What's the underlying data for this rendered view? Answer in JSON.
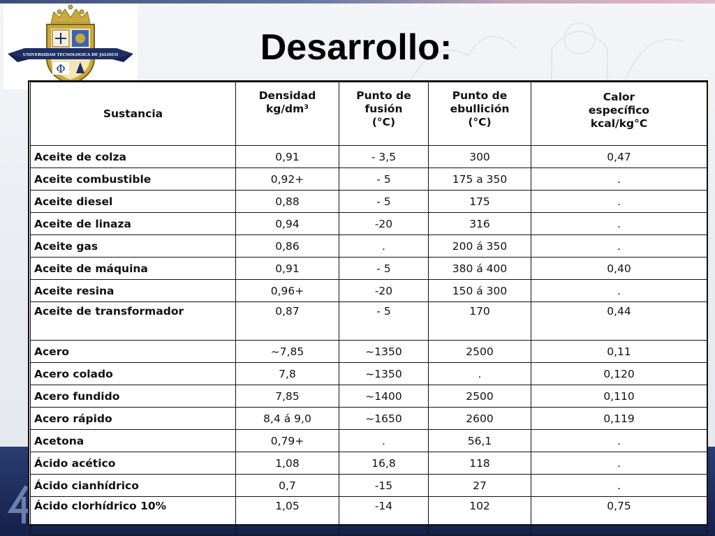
{
  "slide": {
    "title": "Desarrollo:",
    "logo": {
      "text": "UNIVERSIDAD TECNOLOGICA DE JALISCO",
      "colors": {
        "gold": "#c9a93b",
        "navy": "#1f2f63",
        "blue": "#3a63b8"
      }
    }
  },
  "table": {
    "headers": [
      "Sustancia",
      "Densidad\nkg/dm³",
      "Punto de\nfusión\n(°C)",
      "Punto de\nebullición\n(°C)",
      "Calor\nespecífico\nkcal/kg°C"
    ],
    "rows": [
      [
        "Aceite de colza",
        "0,91",
        "- 3,5",
        "300",
        "0,47"
      ],
      [
        "Aceite combustible",
        "0,92+",
        "- 5",
        "175 a 350",
        "."
      ],
      [
        "Aceite diesel",
        "0,88",
        "- 5",
        "175",
        "."
      ],
      [
        "Aceite de linaza",
        "0,94",
        "-20",
        "316",
        "."
      ],
      [
        "Aceite gas",
        "0,86",
        ".",
        "200 á 350",
        "."
      ],
      [
        "Aceite de máquina",
        "0,91",
        "- 5",
        "380 á 400",
        "0,40"
      ],
      [
        "Aceite resina",
        "0,96+",
        "-20",
        "150 á 300",
        "."
      ],
      [
        "Aceite de transformador",
        "0,87",
        "- 5",
        "170",
        "0,44"
      ],
      [
        "Acero",
        "~7,85",
        "~1350",
        "2500",
        "0,11"
      ],
      [
        "Acero colado",
        "7,8",
        "~1350",
        ".",
        "0,120"
      ],
      [
        "Acero fundido",
        "7,85",
        "~1400",
        "2500",
        "0,110"
      ],
      [
        "Acero rápido",
        "8,4 á 9,0",
        "~1650",
        "2600",
        "0,119"
      ],
      [
        "Acetona",
        "0,79+",
        ".",
        "56,1",
        "."
      ],
      [
        "Ácido acético",
        "1,08",
        "16,8",
        "118",
        "."
      ],
      [
        "Ácido cianhídrico",
        "0,7",
        "-15",
        "27",
        "."
      ],
      [
        "Ácido clorhídrico 10%",
        "1,05",
        "-14",
        "102",
        "0,75"
      ]
    ]
  }
}
